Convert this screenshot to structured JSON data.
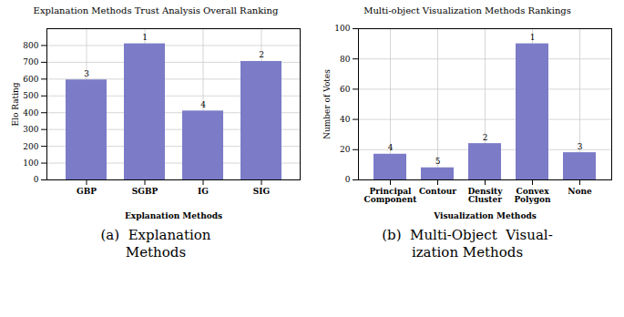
{
  "chart_data": [
    {
      "type": "bar",
      "title": "Explanation Methods Trust Analysis Overall Ranking",
      "categories": [
        "GBP",
        "SGBP",
        "IG",
        "SIG"
      ],
      "values": [
        595,
        810,
        410,
        705
      ],
      "ranks": [
        3,
        1,
        4,
        2
      ],
      "xlabel": "Explanation Methods",
      "ylabel": "Elo Rating",
      "ylim": [
        0,
        900
      ],
      "yticks": [
        0,
        100,
        200,
        300,
        400,
        500,
        600,
        700,
        800
      ],
      "color": "#7b7bc8",
      "grid": true,
      "annotations": [
        "(a)  Explanation",
        "Methods"
      ]
    },
    {
      "type": "bar",
      "title": "Multi-object Visualization Methods Rankings",
      "categories": [
        "Principal\nComponent",
        "Contour",
        "Density\nCluster",
        "Convex\nPolygon",
        "None"
      ],
      "values": [
        17,
        8,
        24,
        90,
        18
      ],
      "ranks": [
        4,
        5,
        2,
        1,
        3
      ],
      "xlabel": "Visualization Methods",
      "ylabel": "Number of Votes",
      "ylim": [
        0,
        100
      ],
      "yticks": [
        0,
        20,
        40,
        60,
        80,
        100
      ],
      "color": "#7b7bc8",
      "grid": true,
      "annotations": [
        "(b)  Multi-Object  Visual-",
        "ization Methods"
      ]
    }
  ]
}
